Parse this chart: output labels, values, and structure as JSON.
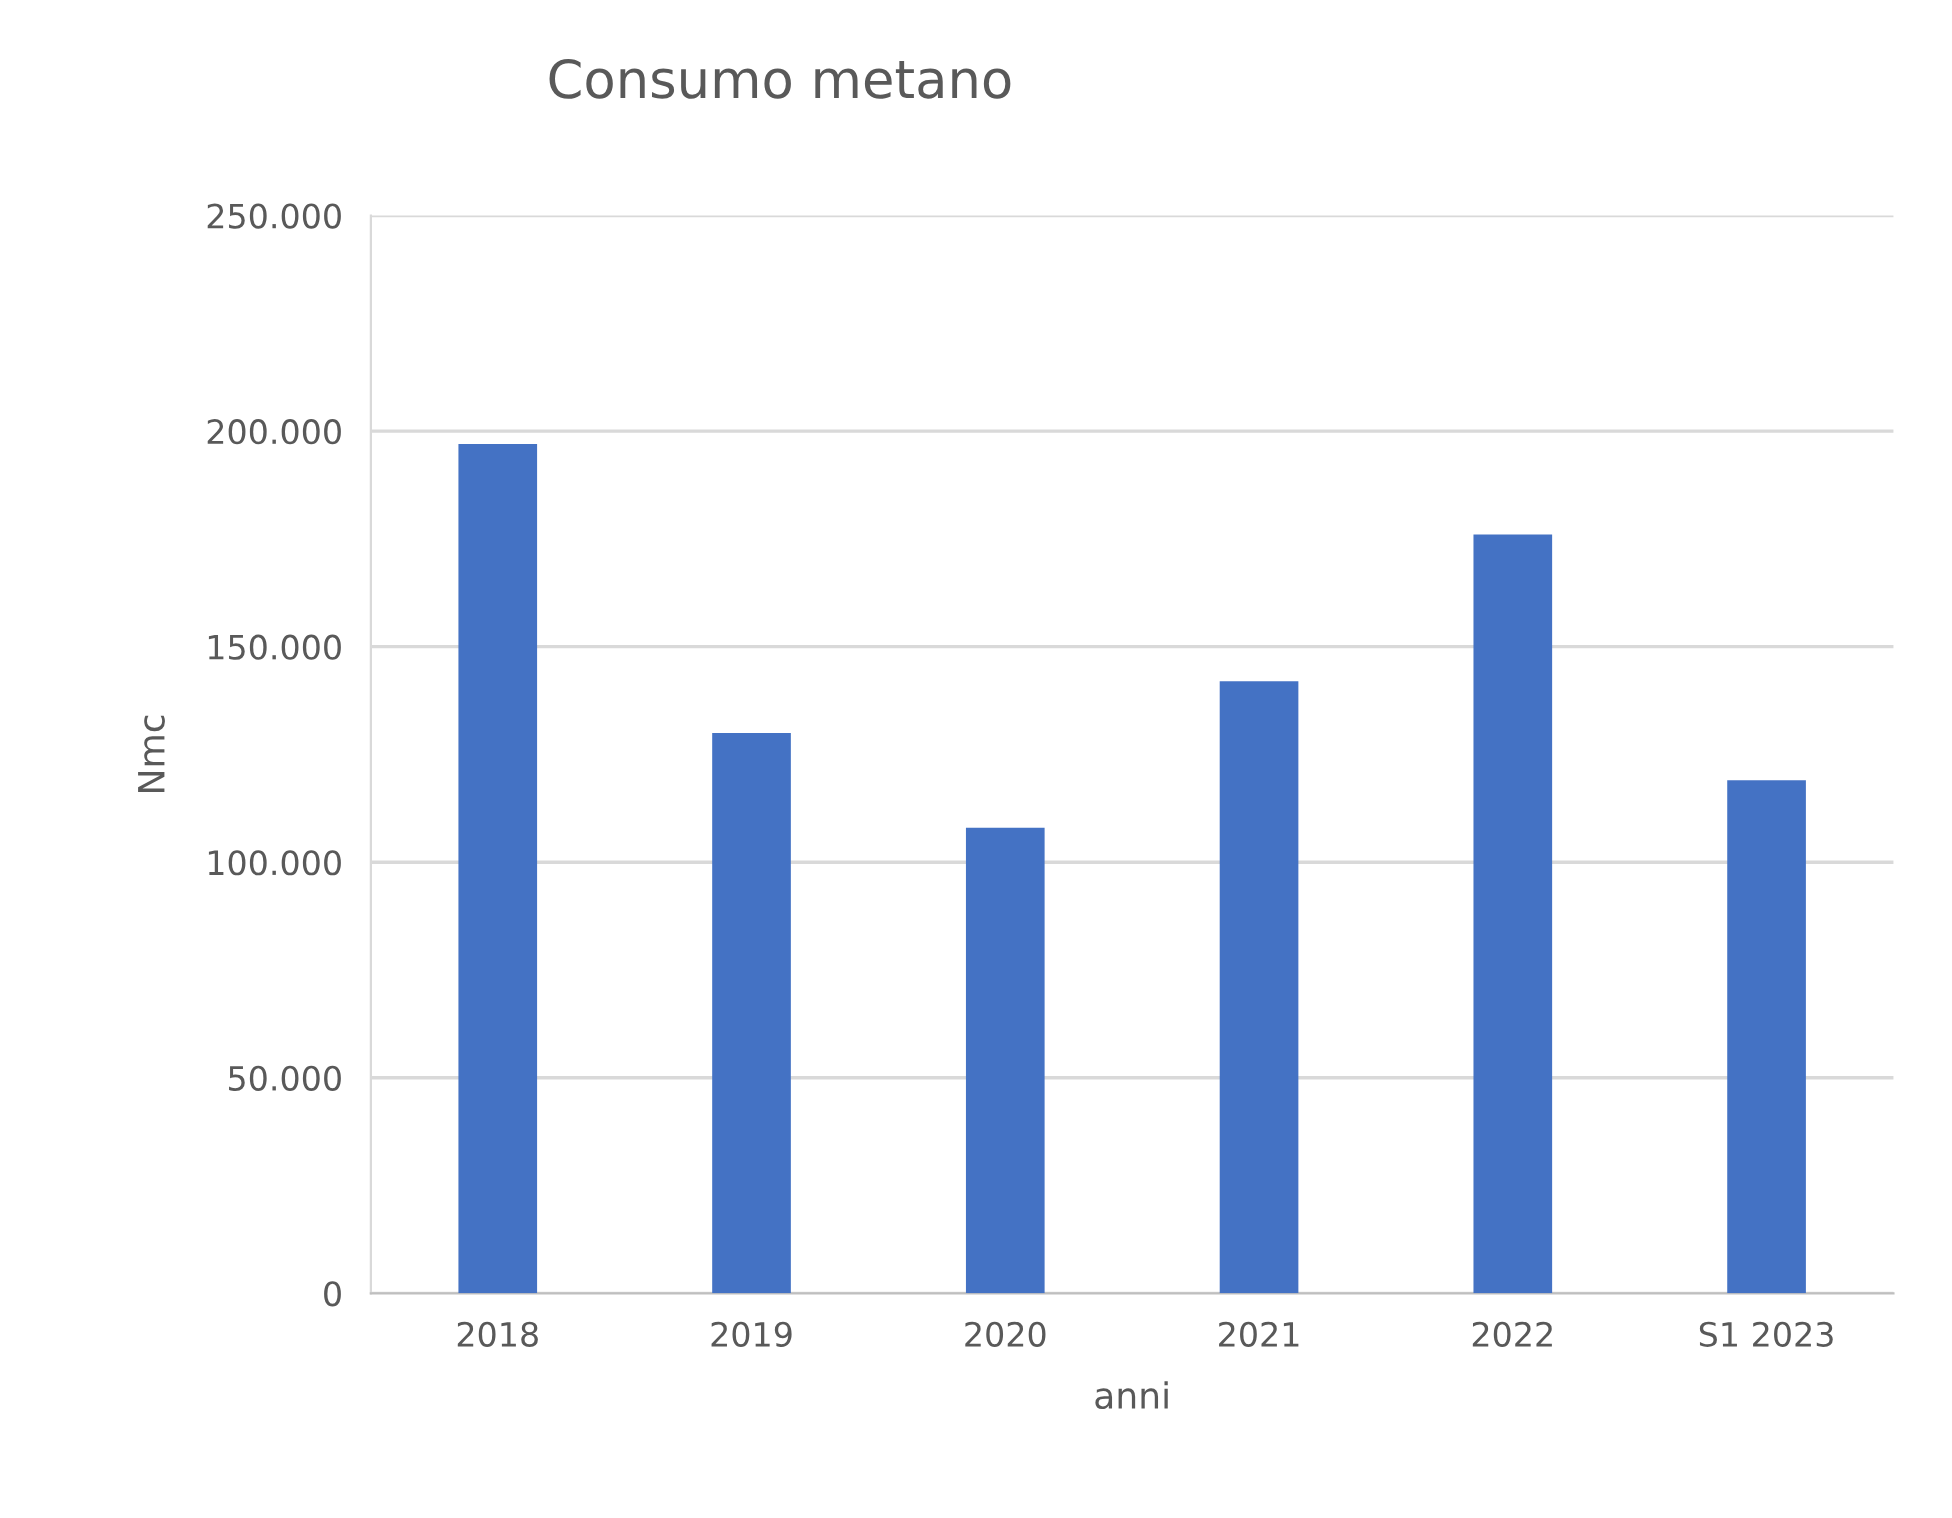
{
  "chart_data": {
    "type": "bar",
    "title": "Consumo metano",
    "xlabel": "anni",
    "ylabel": "Nmc",
    "categories": [
      "2018",
      "2019",
      "2020",
      "2021",
      "2022",
      "S1 2023"
    ],
    "values": [
      197000,
      130000,
      108000,
      142000,
      176000,
      119000
    ],
    "color": "#4472c4",
    "ylim": [
      0,
      250000
    ],
    "yticks": [
      {
        "value": 0,
        "label": "0"
      },
      {
        "value": 50000,
        "label": "50.000"
      },
      {
        "value": 100000,
        "label": "100.000"
      },
      {
        "value": 150000,
        "label": "150.000"
      },
      {
        "value": 200000,
        "label": "200.000"
      },
      {
        "value": 250000,
        "label": "250.000"
      }
    ],
    "grid": "y"
  }
}
